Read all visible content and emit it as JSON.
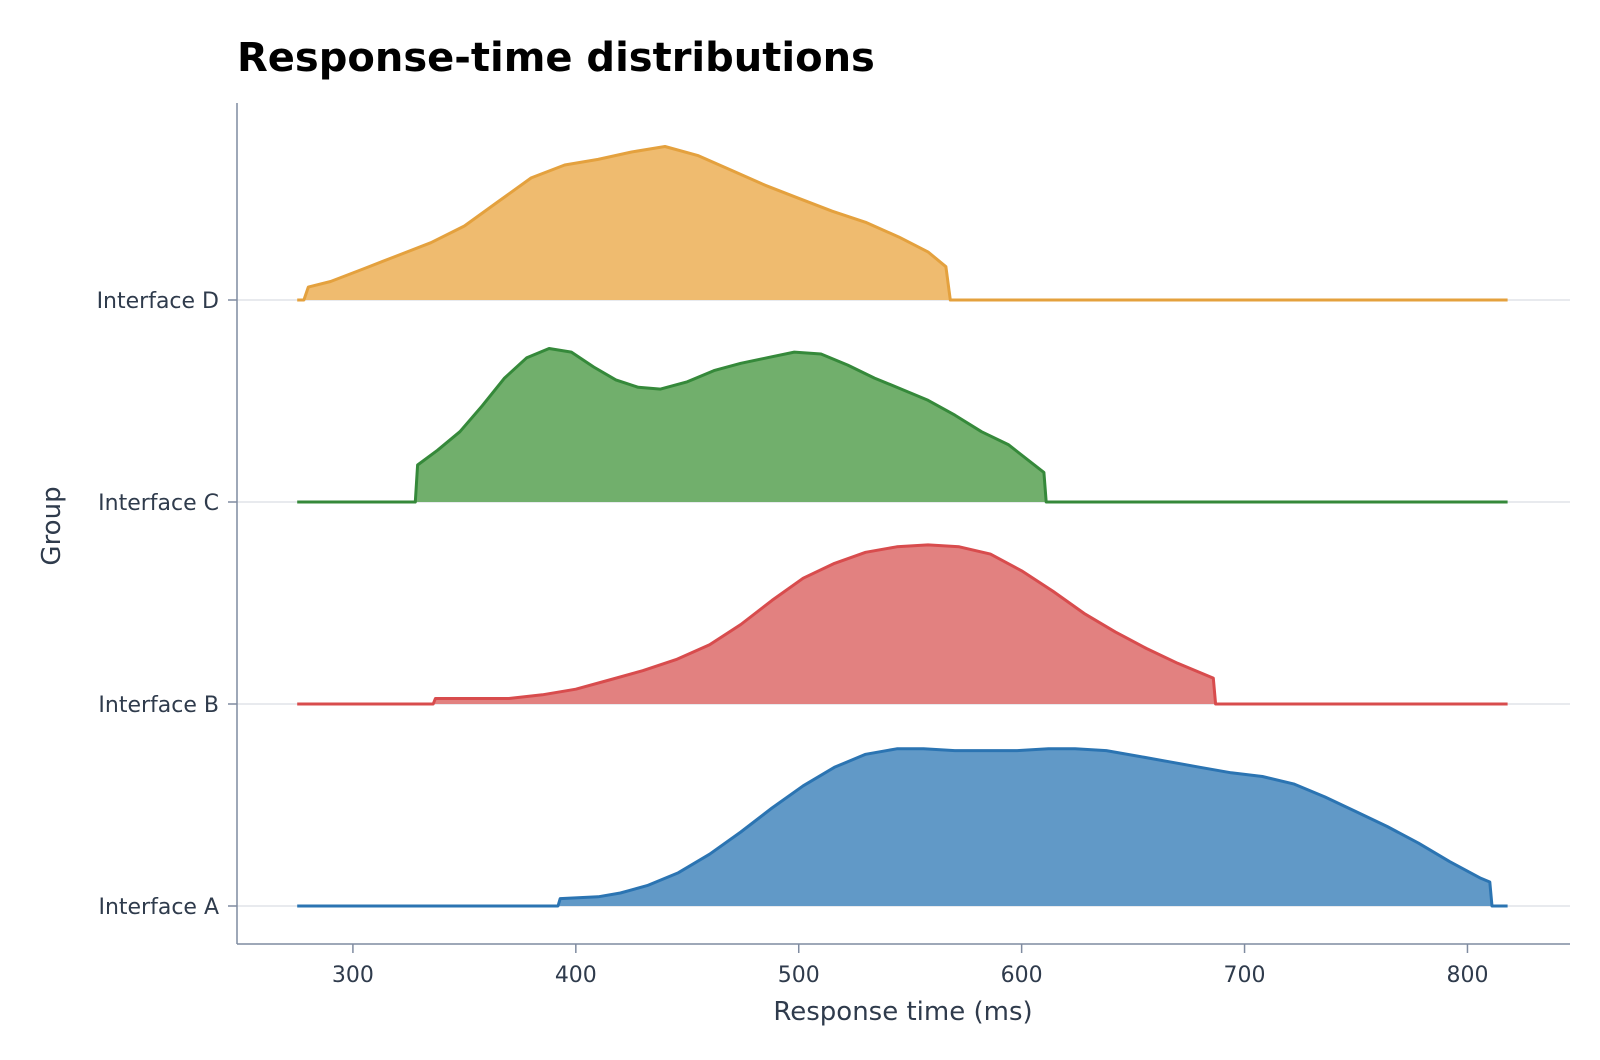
{
  "chart_data": {
    "type": "area",
    "subtype": "ridgeline",
    "title": "Response-time distributions",
    "xlabel": "Response time (ms)",
    "ylabel": "Group",
    "xlim": [
      248,
      846
    ],
    "x_ticks": [
      300,
      400,
      500,
      600,
      700,
      800
    ],
    "x_grid": false,
    "y_grid": true,
    "legend": "none",
    "categories": [
      "Interface A",
      "Interface B",
      "Interface C",
      "Interface D"
    ],
    "series": [
      {
        "name": "Interface A",
        "color": "#2b74b2",
        "fill": "#6199c7",
        "x": [
          275,
          392,
          393,
          410,
          420,
          432,
          446,
          460,
          474,
          488,
          502,
          516,
          530,
          544,
          556,
          570,
          584,
          598,
          612,
          624,
          638,
          652,
          666,
          680,
          694,
          708,
          722,
          736,
          750,
          764,
          778,
          792,
          806,
          810,
          811,
          818
        ],
        "y": [
          0,
          0,
          0.04,
          0.05,
          0.07,
          0.11,
          0.18,
          0.28,
          0.4,
          0.53,
          0.65,
          0.75,
          0.82,
          0.85,
          0.85,
          0.84,
          0.84,
          0.84,
          0.85,
          0.85,
          0.84,
          0.81,
          0.78,
          0.75,
          0.72,
          0.7,
          0.66,
          0.59,
          0.51,
          0.43,
          0.34,
          0.24,
          0.15,
          0.13,
          0,
          0
        ]
      },
      {
        "name": "Interface B",
        "color": "#d84c4d",
        "fill": "#e28180",
        "x": [
          275,
          336,
          337,
          350,
          370,
          385,
          400,
          415,
          430,
          445,
          460,
          474,
          488,
          502,
          516,
          530,
          544,
          558,
          572,
          586,
          600,
          614,
          628,
          642,
          656,
          670,
          686,
          687,
          818
        ],
        "y": [
          0,
          0,
          0.03,
          0.03,
          0.03,
          0.05,
          0.08,
          0.13,
          0.18,
          0.24,
          0.32,
          0.43,
          0.56,
          0.68,
          0.76,
          0.82,
          0.85,
          0.86,
          0.85,
          0.81,
          0.72,
          0.61,
          0.49,
          0.39,
          0.3,
          0.22,
          0.14,
          0,
          0
        ]
      },
      {
        "name": "Interface C",
        "color": "#35893a",
        "fill": "#71af6c",
        "x": [
          275,
          328,
          329,
          338,
          348,
          358,
          368,
          378,
          388,
          398,
          408,
          418,
          428,
          438,
          450,
          462,
          474,
          486,
          498,
          510,
          522,
          534,
          546,
          558,
          570,
          582,
          594,
          610,
          611,
          818
        ],
        "y": [
          0,
          0,
          0.2,
          0.28,
          0.38,
          0.52,
          0.67,
          0.78,
          0.83,
          0.81,
          0.73,
          0.66,
          0.62,
          0.61,
          0.65,
          0.71,
          0.75,
          0.78,
          0.81,
          0.8,
          0.74,
          0.67,
          0.61,
          0.55,
          0.47,
          0.38,
          0.31,
          0.16,
          0,
          0
        ]
      },
      {
        "name": "Interface D",
        "color": "#e4a13e",
        "fill": "#efbb6f",
        "x": [
          275,
          278,
          280,
          290,
          305,
          320,
          335,
          350,
          365,
          380,
          395,
          410,
          425,
          440,
          455,
          470,
          485,
          500,
          515,
          530,
          545,
          558,
          566,
          568,
          818
        ],
        "y": [
          0,
          0,
          0.07,
          0.1,
          0.17,
          0.24,
          0.31,
          0.4,
          0.53,
          0.66,
          0.73,
          0.76,
          0.8,
          0.83,
          0.78,
          0.7,
          0.62,
          0.55,
          0.48,
          0.42,
          0.34,
          0.26,
          0.18,
          0,
          0
        ]
      }
    ]
  }
}
